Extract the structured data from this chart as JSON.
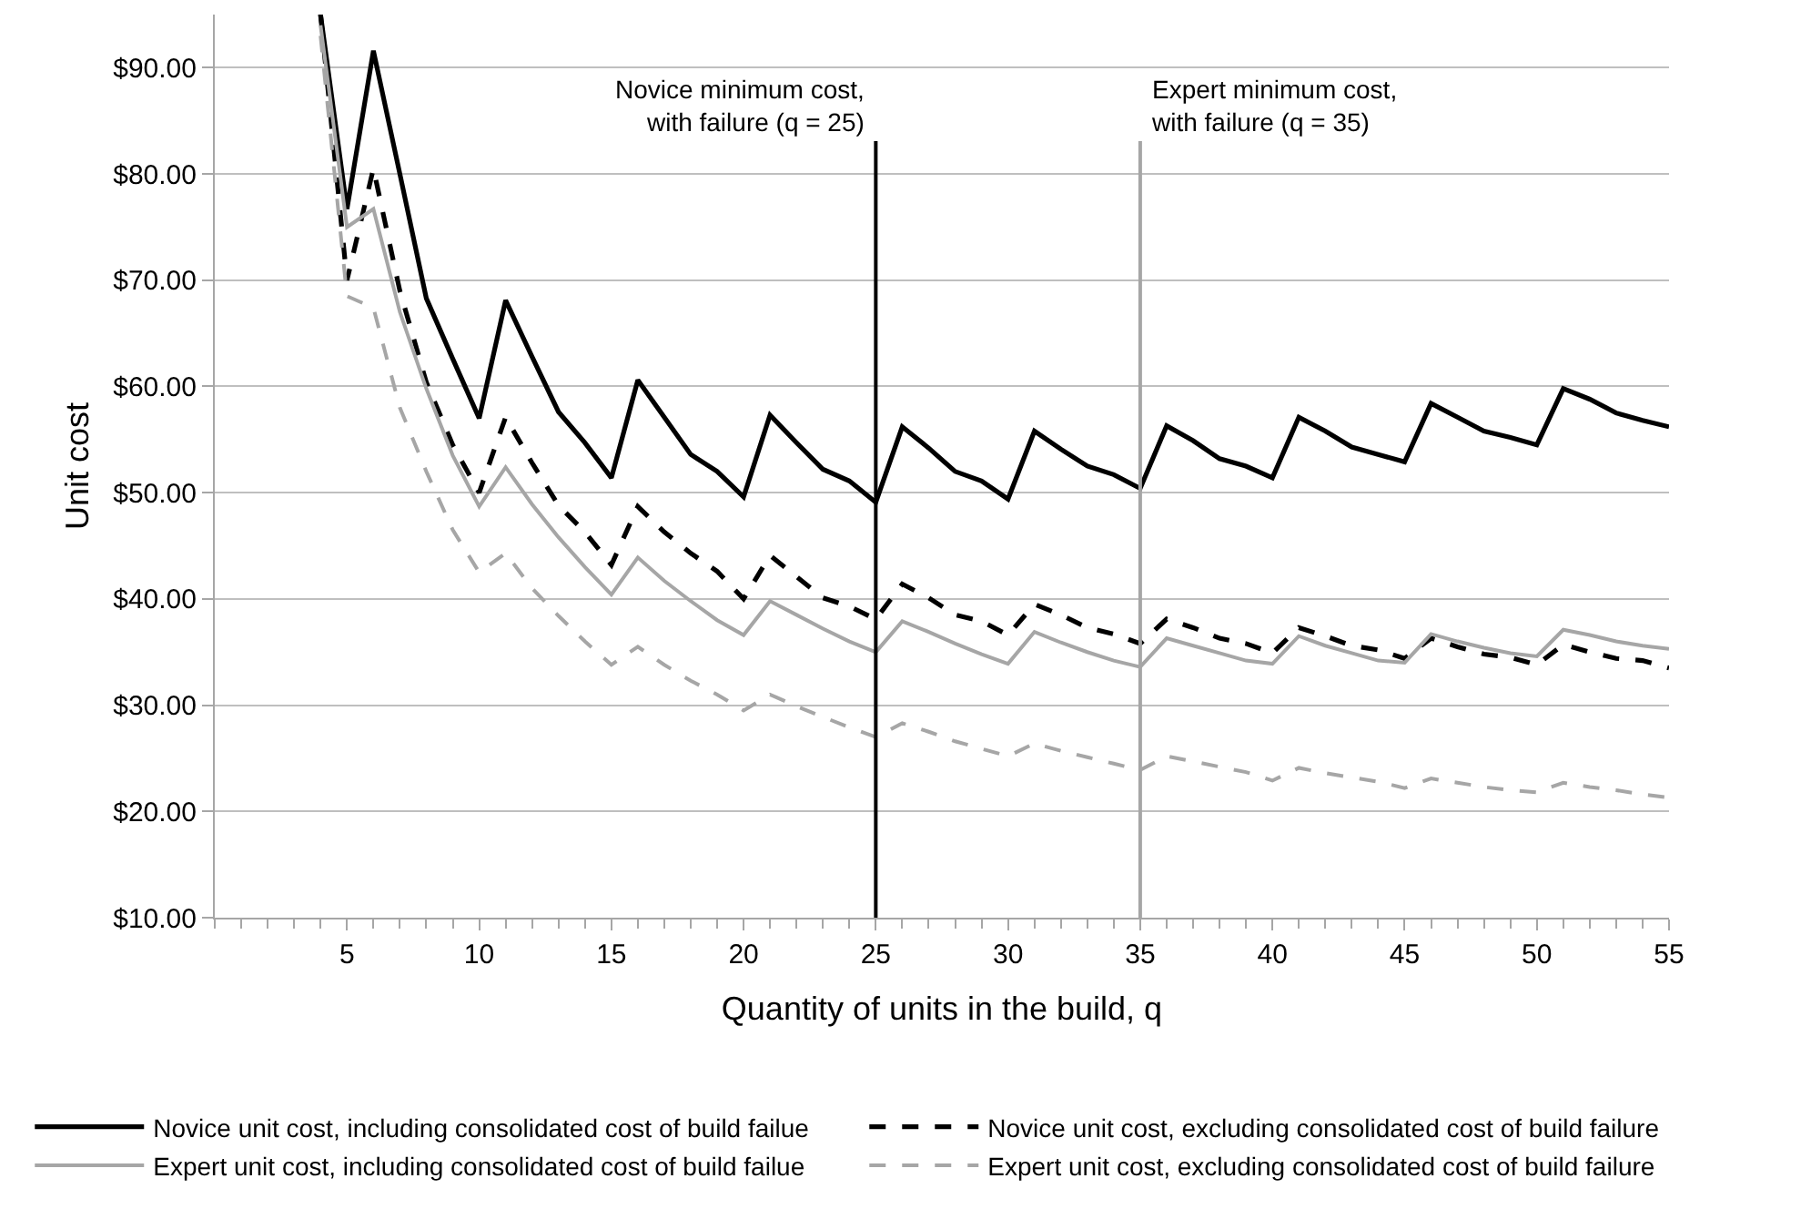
{
  "chart_data": {
    "type": "line",
    "xlabel": "Quantity of units in the build, q",
    "ylabel": "Unit cost",
    "x": [
      4,
      5,
      6,
      7,
      8,
      9,
      10,
      11,
      12,
      13,
      14,
      15,
      16,
      17,
      18,
      19,
      20,
      21,
      22,
      23,
      24,
      25,
      26,
      27,
      28,
      29,
      30,
      31,
      32,
      33,
      34,
      35,
      36,
      37,
      38,
      39,
      40,
      41,
      42,
      43,
      44,
      45,
      46,
      47,
      48,
      49,
      50,
      51,
      52,
      53,
      54,
      55
    ],
    "series": [
      {
        "name": "Novice unit cost, including consolidated cost of build failue",
        "color": "#000000",
        "line_style": "solid",
        "values": [
          95,
          76.7,
          91.6,
          80.0,
          68.3,
          62.6,
          57.0,
          68.1,
          62.8,
          57.6,
          54.7,
          51.4,
          60.6,
          57.1,
          53.6,
          52.0,
          49.6,
          57.3,
          54.7,
          52.2,
          51.1,
          49.1,
          56.2,
          54.2,
          52.0,
          51.1,
          49.4,
          55.8,
          54.1,
          52.5,
          51.7,
          50.4,
          56.3,
          54.9,
          53.2,
          52.5,
          51.4,
          57.1,
          55.8,
          54.3,
          53.6,
          52.9,
          58.4,
          57.1,
          55.8,
          55.2,
          54.5,
          59.8,
          58.8,
          57.5,
          56.8,
          56.2
        ]
      },
      {
        "name": "Novice unit cost, excluding consolidated cost of build failure",
        "color": "#000000",
        "line_style": "dashed",
        "values": [
          95,
          70.0,
          80.5,
          69.0,
          60.4,
          54.5,
          50.0,
          57.1,
          52.8,
          48.8,
          46.3,
          43.2,
          48.7,
          46.3,
          44.3,
          42.6,
          40.0,
          44.1,
          42.1,
          40.1,
          39.3,
          38.1,
          41.4,
          40.1,
          38.5,
          37.9,
          36.6,
          39.5,
          38.5,
          37.3,
          36.7,
          35.8,
          38.1,
          37.3,
          36.3,
          35.8,
          34.9,
          37.3,
          36.5,
          35.6,
          35.2,
          34.4,
          36.3,
          35.5,
          34.8,
          34.5,
          33.8,
          35.7,
          35.0,
          34.4,
          34.2,
          33.5
        ]
      },
      {
        "name": "Expert unit cost, including consolidated cost of build failue",
        "color": "#a6a6a6",
        "line_style": "solid",
        "values": [
          94,
          75.0,
          76.7,
          67.0,
          59.8,
          53.5,
          48.7,
          52.4,
          48.9,
          45.8,
          43.0,
          40.4,
          43.9,
          41.7,
          39.8,
          38.0,
          36.6,
          39.8,
          38.5,
          37.2,
          36.0,
          35.0,
          37.9,
          36.9,
          35.8,
          34.8,
          33.9,
          36.9,
          35.9,
          35.0,
          34.2,
          33.6,
          36.3,
          35.6,
          34.9,
          34.2,
          33.9,
          36.5,
          35.6,
          34.9,
          34.2,
          34.0,
          36.7,
          36.0,
          35.4,
          34.9,
          34.6,
          37.1,
          36.6,
          36.0,
          35.6,
          35.3
        ]
      },
      {
        "name": "Expert unit cost, excluding consolidated cost of build failure",
        "color": "#a6a6a6",
        "line_style": "dashed",
        "values": [
          93,
          68.5,
          67.4,
          58.0,
          52.0,
          46.5,
          42.5,
          44.3,
          41.0,
          38.4,
          36.0,
          33.8,
          35.5,
          33.8,
          32.3,
          31.0,
          29.5,
          31.0,
          29.9,
          28.9,
          27.9,
          27.0,
          28.3,
          27.5,
          26.6,
          25.9,
          25.2,
          26.4,
          25.7,
          25.1,
          24.5,
          23.9,
          25.2,
          24.7,
          24.2,
          23.7,
          22.9,
          24.1,
          23.6,
          23.2,
          22.8,
          22.2,
          23.1,
          22.7,
          22.3,
          22.0,
          21.8,
          22.7,
          22.3,
          22.0,
          21.6,
          21.3
        ]
      }
    ],
    "xlim": [
      0,
      55
    ],
    "xticks": [
      5,
      10,
      15,
      20,
      25,
      30,
      35,
      40,
      45,
      50,
      55
    ],
    "ylim": [
      10,
      95
    ],
    "yticks": [
      {
        "value": 10,
        "label": "$10.00"
      },
      {
        "value": 20,
        "label": "$20.00"
      },
      {
        "value": 30,
        "label": "$30.00"
      },
      {
        "value": 40,
        "label": "$40.00"
      },
      {
        "value": 50,
        "label": "$50.00"
      },
      {
        "value": 60,
        "label": "$60.00"
      },
      {
        "value": 70,
        "label": "$70.00"
      },
      {
        "value": 80,
        "label": "$80.00"
      },
      {
        "value": 90,
        "label": "$90.00"
      }
    ],
    "grid": "y",
    "legend": "bottom",
    "marker": "none",
    "ref_lines": [
      {
        "axis": "x",
        "value": 25,
        "label": "Novice minimum cost,\nwith failure (q = 25)",
        "color": "#000000"
      },
      {
        "axis": "x",
        "value": 35,
        "label": "Expert minimum cost,\nwith failure (q = 35)",
        "color": "#a6a6a6"
      }
    ]
  }
}
